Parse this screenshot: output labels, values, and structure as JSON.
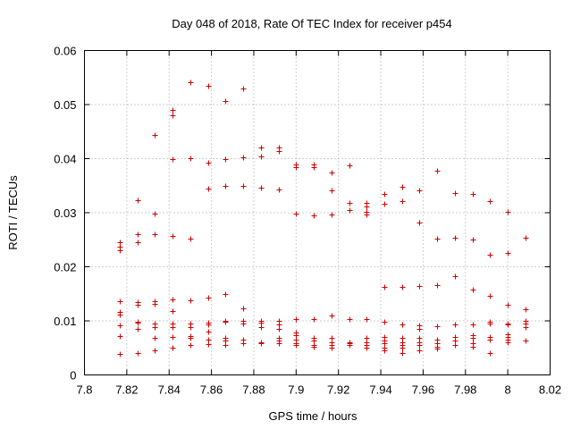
{
  "chart_data": {
    "type": "scatter",
    "title": "Day 048 of 2018, Rate Of TEC Index for receiver p454",
    "xlabel": "GPS time / hours",
    "ylabel": "ROTI / TECUs",
    "xlim": [
      7.8,
      8.02
    ],
    "ylim": [
      0,
      0.06
    ],
    "xticks": [
      "7.8",
      "7.82",
      "7.84",
      "7.86",
      "7.88",
      "7.9",
      "7.92",
      "7.94",
      "7.96",
      "7.98",
      "8",
      "8.02"
    ],
    "yticks": [
      "0",
      "0.01",
      "0.02",
      "0.03",
      "0.04",
      "0.05",
      "0.06"
    ],
    "grid": true,
    "marker": "+",
    "color": "#d00000",
    "points": [
      [
        7.8167,
        0.0245
      ],
      [
        7.8167,
        0.0238
      ],
      [
        7.8167,
        0.023
      ],
      [
        7.8167,
        0.0137
      ],
      [
        7.8167,
        0.0117
      ],
      [
        7.8167,
        0.0112
      ],
      [
        7.8167,
        0.0092
      ],
      [
        7.8167,
        0.0072
      ],
      [
        7.8167,
        0.0039
      ],
      [
        7.825,
        0.0323
      ],
      [
        7.825,
        0.026
      ],
      [
        7.825,
        0.0245
      ],
      [
        7.825,
        0.0135
      ],
      [
        7.825,
        0.013
      ],
      [
        7.825,
        0.0098
      ],
      [
        7.825,
        0.0096
      ],
      [
        7.825,
        0.0085
      ],
      [
        7.825,
        0.0041
      ],
      [
        7.8333,
        0.0443
      ],
      [
        7.8333,
        0.0299
      ],
      [
        7.8333,
        0.026
      ],
      [
        7.8333,
        0.0136
      ],
      [
        7.8333,
        0.0132
      ],
      [
        7.8333,
        0.0095
      ],
      [
        7.8333,
        0.0088
      ],
      [
        7.8333,
        0.0068
      ],
      [
        7.8333,
        0.0045
      ],
      [
        7.8417,
        0.049
      ],
      [
        7.8417,
        0.048
      ],
      [
        7.8417,
        0.0399
      ],
      [
        7.8417,
        0.0257
      ],
      [
        7.8417,
        0.014
      ],
      [
        7.8417,
        0.0118
      ],
      [
        7.8417,
        0.0095
      ],
      [
        7.8417,
        0.0088
      ],
      [
        7.8417,
        0.007
      ],
      [
        7.8417,
        0.005
      ],
      [
        7.85,
        0.0541
      ],
      [
        7.85,
        0.04
      ],
      [
        7.85,
        0.0252
      ],
      [
        7.85,
        0.0138
      ],
      [
        7.85,
        0.0095
      ],
      [
        7.85,
        0.0088
      ],
      [
        7.85,
        0.0072
      ],
      [
        7.85,
        0.0068
      ],
      [
        7.85,
        0.0056
      ],
      [
        7.8583,
        0.0534
      ],
      [
        7.8583,
        0.0393
      ],
      [
        7.8583,
        0.0344
      ],
      [
        7.8583,
        0.0143
      ],
      [
        7.8583,
        0.0097
      ],
      [
        7.8583,
        0.0094
      ],
      [
        7.8583,
        0.008
      ],
      [
        7.8583,
        0.0066
      ],
      [
        7.8583,
        0.0057
      ],
      [
        7.8667,
        0.0506
      ],
      [
        7.8667,
        0.0399
      ],
      [
        7.8667,
        0.035
      ],
      [
        7.8667,
        0.015
      ],
      [
        7.8667,
        0.01
      ],
      [
        7.8667,
        0.0098
      ],
      [
        7.8667,
        0.0068
      ],
      [
        7.8667,
        0.0063
      ],
      [
        7.8667,
        0.0056
      ],
      [
        7.875,
        0.0529
      ],
      [
        7.875,
        0.0403
      ],
      [
        7.875,
        0.0349
      ],
      [
        7.875,
        0.0123
      ],
      [
        7.875,
        0.01
      ],
      [
        7.875,
        0.0095
      ],
      [
        7.875,
        0.0065
      ],
      [
        7.875,
        0.0058
      ],
      [
        7.8833,
        0.0421
      ],
      [
        7.8833,
        0.0404
      ],
      [
        7.8833,
        0.0346
      ],
      [
        7.8833,
        0.01
      ],
      [
        7.8833,
        0.0097
      ],
      [
        7.8833,
        0.0088
      ],
      [
        7.8833,
        0.006
      ],
      [
        7.8833,
        0.0058
      ],
      [
        7.8917,
        0.0421
      ],
      [
        7.8917,
        0.0414
      ],
      [
        7.8917,
        0.0343
      ],
      [
        7.8917,
        0.01
      ],
      [
        7.8917,
        0.0093
      ],
      [
        7.8917,
        0.0085
      ],
      [
        7.8917,
        0.0068
      ],
      [
        7.8917,
        0.0063
      ],
      [
        7.8917,
        0.0058
      ],
      [
        7.9,
        0.039
      ],
      [
        7.9,
        0.0385
      ],
      [
        7.9,
        0.0299
      ],
      [
        7.9,
        0.0104
      ],
      [
        7.9,
        0.0078
      ],
      [
        7.9,
        0.0074
      ],
      [
        7.9,
        0.0066
      ],
      [
        7.9,
        0.0059
      ],
      [
        7.9,
        0.0056
      ],
      [
        7.9083,
        0.039
      ],
      [
        7.9083,
        0.0385
      ],
      [
        7.9083,
        0.0295
      ],
      [
        7.9083,
        0.0104
      ],
      [
        7.9083,
        0.0068
      ],
      [
        7.9083,
        0.0063
      ],
      [
        7.9083,
        0.0056
      ],
      [
        7.9083,
        0.0052
      ],
      [
        7.9167,
        0.0375
      ],
      [
        7.9167,
        0.0342
      ],
      [
        7.9167,
        0.0296
      ],
      [
        7.9167,
        0.011
      ],
      [
        7.9167,
        0.0068
      ],
      [
        7.9167,
        0.006
      ],
      [
        7.9167,
        0.0055
      ],
      [
        7.9167,
        0.0051
      ],
      [
        7.925,
        0.0388
      ],
      [
        7.925,
        0.0318
      ],
      [
        7.925,
        0.0305
      ],
      [
        7.925,
        0.0104
      ],
      [
        7.925,
        0.006
      ],
      [
        7.925,
        0.0058
      ],
      [
        7.925,
        0.0055
      ],
      [
        7.9333,
        0.0318
      ],
      [
        7.9333,
        0.0312
      ],
      [
        7.9333,
        0.0302
      ],
      [
        7.9333,
        0.0297
      ],
      [
        7.9333,
        0.0103
      ],
      [
        7.9333,
        0.0068
      ],
      [
        7.9333,
        0.006
      ],
      [
        7.9333,
        0.0055
      ],
      [
        7.9333,
        0.005
      ],
      [
        7.9417,
        0.0334
      ],
      [
        7.9417,
        0.0317
      ],
      [
        7.9417,
        0.0163
      ],
      [
        7.9417,
        0.0098
      ],
      [
        7.9417,
        0.007
      ],
      [
        7.9417,
        0.0063
      ],
      [
        7.9417,
        0.0058
      ],
      [
        7.9417,
        0.005
      ],
      [
        7.9417,
        0.0045
      ],
      [
        7.95,
        0.0348
      ],
      [
        7.95,
        0.0322
      ],
      [
        7.95,
        0.0162
      ],
      [
        7.95,
        0.0093
      ],
      [
        7.95,
        0.0068
      ],
      [
        7.95,
        0.006
      ],
      [
        7.95,
        0.0055
      ],
      [
        7.95,
        0.005
      ],
      [
        7.95,
        0.004
      ],
      [
        7.9583,
        0.0342
      ],
      [
        7.9583,
        0.0281
      ],
      [
        7.9583,
        0.0164
      ],
      [
        7.9583,
        0.0092
      ],
      [
        7.9583,
        0.0085
      ],
      [
        7.9583,
        0.0068
      ],
      [
        7.9583,
        0.006
      ],
      [
        7.9583,
        0.0055
      ],
      [
        7.9583,
        0.0045
      ],
      [
        7.9667,
        0.0377
      ],
      [
        7.9667,
        0.0252
      ],
      [
        7.9667,
        0.0166
      ],
      [
        7.9667,
        0.009
      ],
      [
        7.9667,
        0.0065
      ],
      [
        7.9667,
        0.0058
      ],
      [
        7.9667,
        0.0052
      ],
      [
        7.9667,
        0.0048
      ],
      [
        7.975,
        0.0337
      ],
      [
        7.975,
        0.0253
      ],
      [
        7.975,
        0.0183
      ],
      [
        7.975,
        0.0093
      ],
      [
        7.975,
        0.007
      ],
      [
        7.975,
        0.0063
      ],
      [
        7.975,
        0.0056
      ],
      [
        7.9833,
        0.0334
      ],
      [
        7.9833,
        0.025
      ],
      [
        7.9833,
        0.0158
      ],
      [
        7.9833,
        0.0093
      ],
      [
        7.9833,
        0.0073
      ],
      [
        7.9833,
        0.0068
      ],
      [
        7.9833,
        0.0058
      ],
      [
        7.9833,
        0.0052
      ],
      [
        7.9917,
        0.0322
      ],
      [
        7.9917,
        0.0223
      ],
      [
        7.9917,
        0.0146
      ],
      [
        7.9917,
        0.0098
      ],
      [
        7.9917,
        0.0095
      ],
      [
        7.9917,
        0.007
      ],
      [
        7.9917,
        0.0065
      ],
      [
        7.9917,
        0.004
      ],
      [
        8.0,
        0.0302
      ],
      [
        8.0,
        0.0226
      ],
      [
        8.0,
        0.013
      ],
      [
        8.0,
        0.0095
      ],
      [
        8.0,
        0.0093
      ],
      [
        8.0,
        0.0075
      ],
      [
        8.0,
        0.007
      ],
      [
        8.0,
        0.0066
      ],
      [
        8.0,
        0.006
      ],
      [
        8.0083,
        0.0254
      ],
      [
        8.0083,
        0.0122
      ],
      [
        8.0083,
        0.01
      ],
      [
        8.0083,
        0.0095
      ],
      [
        8.0083,
        0.0088
      ],
      [
        8.0083,
        0.0063
      ]
    ]
  }
}
